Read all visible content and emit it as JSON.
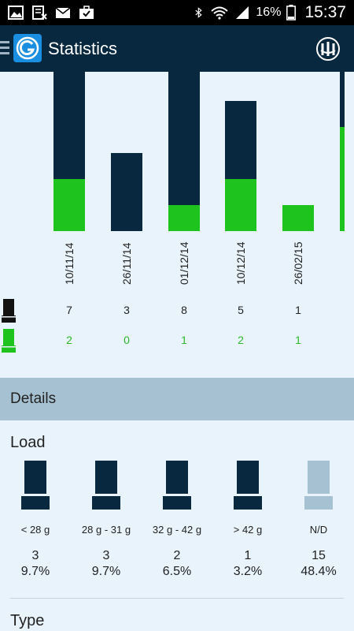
{
  "status_bar": {
    "battery": "16%",
    "time": "15:37",
    "left_icons": [
      "gallery-icon",
      "calendar-x-icon",
      "mail-icon",
      "briefcase-check-icon"
    ],
    "right_icons": [
      "bluetooth-icon",
      "wifi-icon",
      "signal-icon",
      "battery-icon"
    ]
  },
  "app_bar": {
    "title": "Statistics"
  },
  "chart_data": {
    "type": "bar",
    "categories": [
      "10/11/14",
      "26/11/14",
      "01/12/14",
      "10/12/14",
      "26/02/15"
    ],
    "series": [
      {
        "values": [
          7,
          3,
          8,
          5,
          1
        ]
      },
      {
        "values": [
          2,
          0,
          1,
          2,
          1
        ]
      }
    ],
    "colors": {
      "shots": "#082840",
      "hits": "#1ec31e"
    },
    "xlabel": "",
    "ylabel": ""
  },
  "legend": {
    "shots_values": [
      "7",
      "3",
      "8",
      "5",
      "1"
    ],
    "hits_values": [
      "2",
      "0",
      "1",
      "2",
      "1"
    ]
  },
  "details": {
    "header": "Details",
    "load_title": "Load",
    "type_title": "Type",
    "load_items": [
      {
        "label": "< 28 g",
        "count": "3",
        "percent": "9.7%",
        "state": "active"
      },
      {
        "label": "28 g - 31 g",
        "count": "3",
        "percent": "9.7%",
        "state": "active"
      },
      {
        "label": "32 g - 42 g",
        "count": "2",
        "percent": "6.5%",
        "state": "active"
      },
      {
        "label": "> 42 g",
        "count": "1",
        "percent": "3.2%",
        "state": "active"
      },
      {
        "label": "N/D",
        "count": "15",
        "percent": "48.4%",
        "state": "disabled"
      }
    ]
  }
}
